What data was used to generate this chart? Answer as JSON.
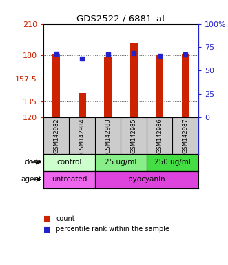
{
  "title": "GDS2522 / 6881_at",
  "samples": [
    "GSM142982",
    "GSM142984",
    "GSM142983",
    "GSM142985",
    "GSM142986",
    "GSM142987"
  ],
  "counts": [
    181,
    143,
    178,
    192,
    180,
    181
  ],
  "percentile_ranks": [
    68,
    63,
    67,
    69,
    66,
    67
  ],
  "ylim": [
    120,
    210
  ],
  "yticks": [
    120,
    135,
    157.5,
    180,
    210
  ],
  "ytick_labels": [
    "120",
    "135",
    "157.5",
    "180",
    "210"
  ],
  "bar_bottom": 120,
  "right_yticks": [
    0,
    25,
    50,
    75,
    100
  ],
  "right_ylim": [
    0,
    100
  ],
  "bar_color": "#cc2200",
  "dot_color": "#2222cc",
  "dose_groups": [
    {
      "label": "control",
      "span": [
        0,
        2
      ],
      "color": "#ccffcc"
    },
    {
      "label": "25 ug/ml",
      "span": [
        2,
        4
      ],
      "color": "#88ee88"
    },
    {
      "label": "250 ug/ml",
      "span": [
        4,
        6
      ],
      "color": "#44dd44"
    }
  ],
  "agent_groups": [
    {
      "label": "untreated",
      "span": [
        0,
        2
      ],
      "color": "#ee66ee"
    },
    {
      "label": "pyocyanin",
      "span": [
        2,
        6
      ],
      "color": "#dd44dd"
    }
  ],
  "left_label_color": "#cc2200",
  "right_label_color": "#2222cc",
  "grid_color": "#555555",
  "bg_color": "#ffffff",
  "sample_bg_color": "#cccccc",
  "legend_count_color": "#cc2200",
  "legend_dot_color": "#2222cc",
  "bar_width": 0.3
}
